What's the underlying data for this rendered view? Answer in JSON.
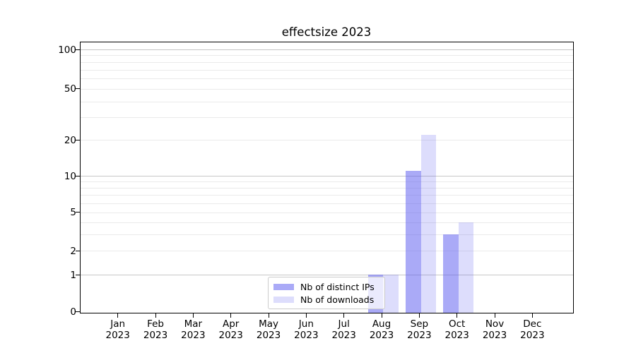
{
  "chart_data": {
    "type": "bar",
    "title": "effectsize 2023",
    "categories": [
      {
        "month": "Jan",
        "year": "2023"
      },
      {
        "month": "Feb",
        "year": "2023"
      },
      {
        "month": "Mar",
        "year": "2023"
      },
      {
        "month": "Apr",
        "year": "2023"
      },
      {
        "month": "May",
        "year": "2023"
      },
      {
        "month": "Jun",
        "year": "2023"
      },
      {
        "month": "Jul",
        "year": "2023"
      },
      {
        "month": "Aug",
        "year": "2023"
      },
      {
        "month": "Sep",
        "year": "2023"
      },
      {
        "month": "Oct",
        "year": "2023"
      },
      {
        "month": "Nov",
        "year": "2023"
      },
      {
        "month": "Dec",
        "year": "2023"
      }
    ],
    "series": [
      {
        "name": "Nb of distinct IPs",
        "color": "rgba(85,85,240,0.5)",
        "values": [
          0,
          0,
          0,
          0,
          0,
          0,
          0,
          1,
          11,
          3,
          0,
          0
        ]
      },
      {
        "name": "Nb of downloads",
        "color": "rgba(85,85,240,0.2)",
        "values": [
          0,
          0,
          0,
          0,
          0,
          0,
          0,
          1,
          22,
          4,
          0,
          0
        ]
      }
    ],
    "y_axis": {
      "scale": "log1p",
      "range": [
        0,
        100
      ],
      "tick_values": [
        0,
        1,
        2,
        5,
        10,
        20,
        50,
        100
      ],
      "tick_labels": [
        "0",
        "1",
        "2",
        "5",
        "10",
        "20",
        "50",
        "100"
      ]
    },
    "grid": {
      "major_values": [
        1,
        10,
        100
      ],
      "minor_values": [
        2,
        3,
        4,
        5,
        6,
        7,
        8,
        9,
        20,
        30,
        40,
        50,
        60,
        70,
        80,
        90
      ]
    },
    "legend": {
      "entries": [
        "Nb of distinct IPs",
        "Nb of downloads"
      ],
      "position": "lower center"
    }
  },
  "colors": {
    "background": "#ffffff",
    "spine": "#000000",
    "major_grid": "#c6c6c6",
    "minor_grid": "#eaeaea",
    "bar_base": "#5555f0",
    "legend_border": "#cccccc",
    "text": "#000000"
  }
}
